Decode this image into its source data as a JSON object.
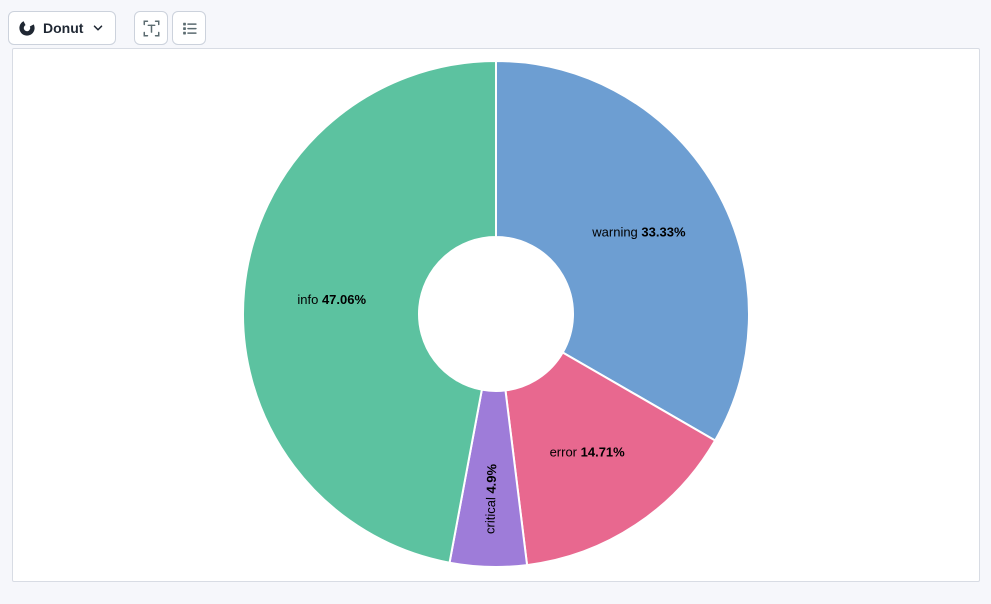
{
  "toolbar": {
    "chart_type_button": {
      "label": "Donut",
      "icon": "donut-chart-icon",
      "chevron_icon": "chevron-down-icon"
    },
    "labels_button": {
      "icon": "text-label-icon"
    },
    "legend_button": {
      "icon": "legend-list-icon"
    }
  },
  "chart_data": {
    "type": "pie",
    "subtype": "donut",
    "direction": "clockwise",
    "start_angle_deg": 0,
    "inner_radius_ratio": 0.3,
    "slice_border_color": "#ffffff",
    "label_color": "#000000",
    "series": [
      {
        "label": "warning",
        "value": 33.33,
        "display": "33.33%",
        "color": "#6d9ed2",
        "label_rotated": false
      },
      {
        "label": "error",
        "value": 14.71,
        "display": "14.71%",
        "color": "#e8688f",
        "label_rotated": false
      },
      {
        "label": "critical",
        "value": 4.9,
        "display": "4.9%",
        "color": "#9e7cd9",
        "label_rotated": true
      },
      {
        "label": "info",
        "value": 47.06,
        "display": "47.06%",
        "color": "#5cc2a0",
        "label_rotated": false
      }
    ]
  }
}
